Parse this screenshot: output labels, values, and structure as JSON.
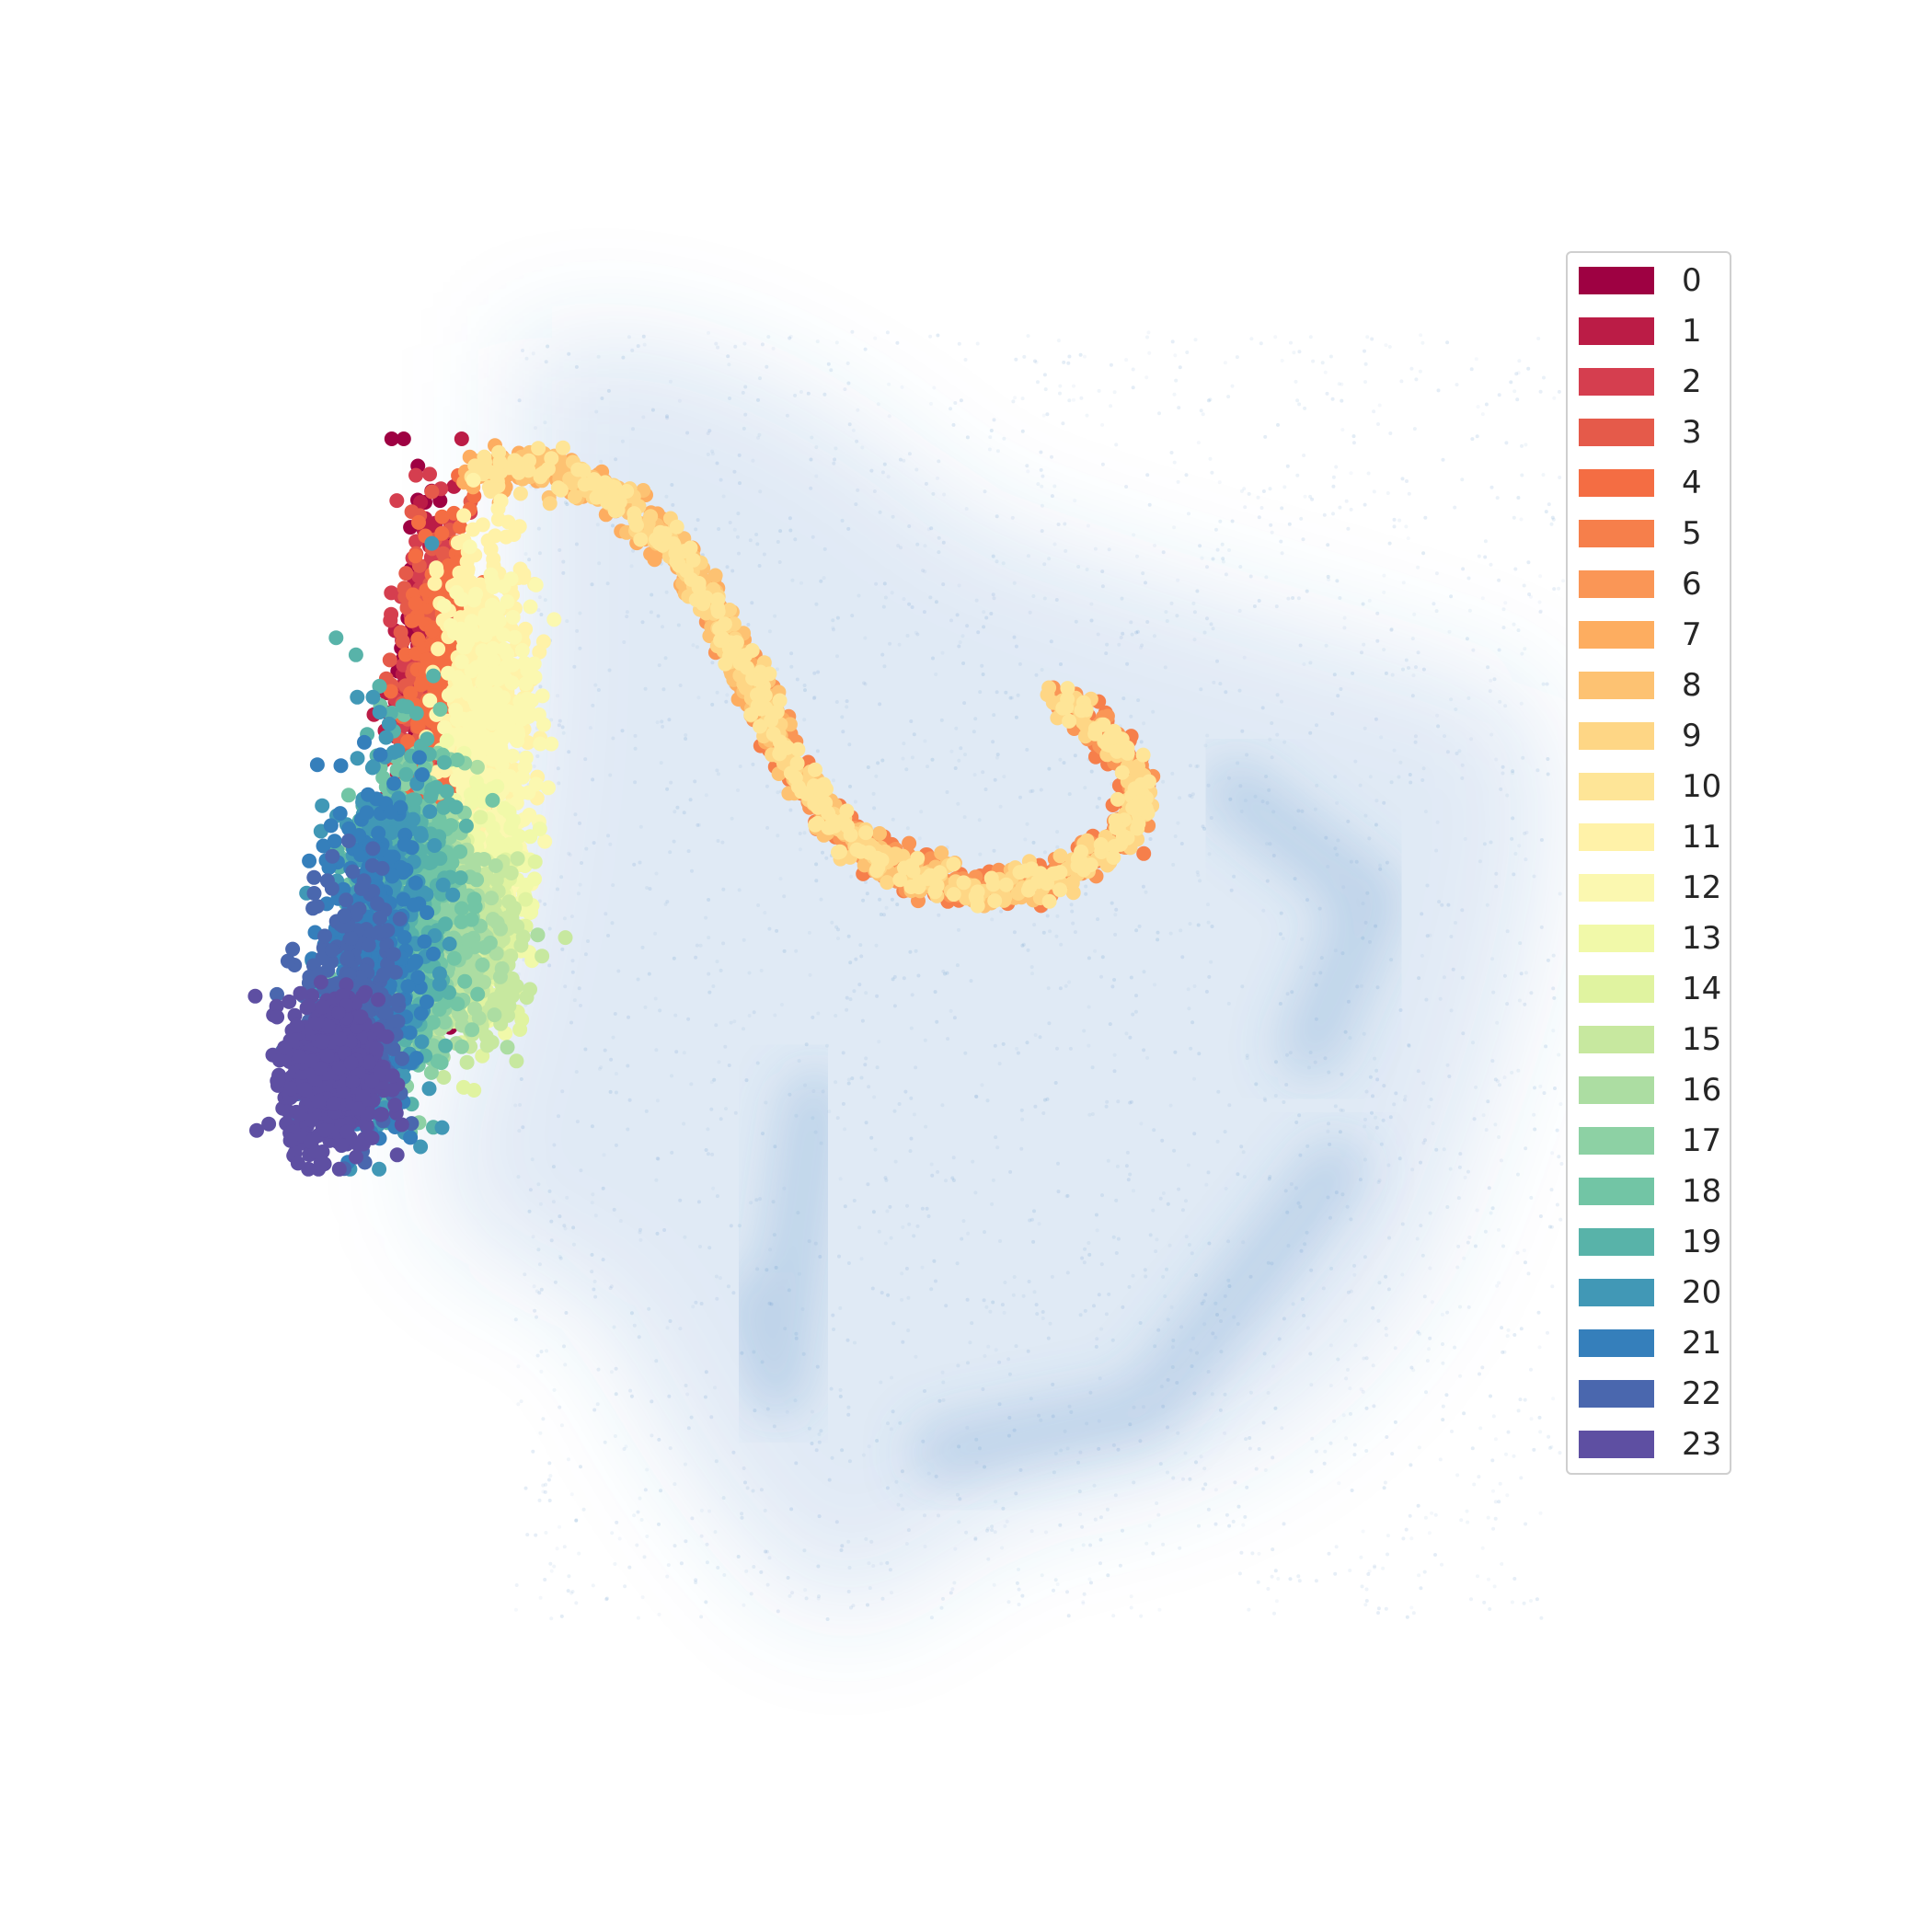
{
  "chart_data": {
    "type": "scatter",
    "title": "",
    "xlabel": "",
    "ylabel": "",
    "axes_visible": false,
    "grid": false,
    "legend_placement": "right",
    "background_density": {
      "color": "#3f7fbf",
      "description_label": "",
      "x_range": [
        0,
        10
      ],
      "y_range": [
        0,
        10
      ],
      "high_density_ridges": [
        {
          "points": [
            [
              4.1,
              4.1
            ],
            [
              3.8,
              2.0
            ],
            [
              3.6,
              2.6
            ]
          ]
        },
        {
          "points": [
            [
              5.1,
              1.5
            ],
            [
              6.7,
              1.8
            ],
            [
              8.2,
              3.6
            ]
          ]
        },
        {
          "points": [
            [
              7.4,
              6.4
            ],
            [
              8.5,
              5.6
            ],
            [
              8.0,
              4.5
            ]
          ]
        }
      ]
    },
    "series": [
      {
        "name": "0",
        "color": "#9e0142",
        "center": [
          1.05,
          6.8
        ],
        "spread": [
          0.12,
          1.4
        ]
      },
      {
        "name": "1",
        "color": "#bb1c46",
        "center": [
          1.05,
          6.7
        ],
        "spread": [
          0.14,
          1.3
        ]
      },
      {
        "name": "2",
        "color": "#d53e4f",
        "center": [
          1.1,
          6.9
        ],
        "spread": [
          0.14,
          1.3
        ]
      },
      {
        "name": "3",
        "color": "#e55a4a",
        "center": [
          1.1,
          6.7
        ],
        "spread": [
          0.15,
          1.4
        ]
      },
      {
        "name": "4",
        "color": "#f46d43",
        "center": [
          1.2,
          7.0
        ],
        "spread": [
          0.15,
          1.3
        ]
      },
      {
        "name": "5",
        "color": "#f67f4b",
        "center": [
          6.3,
          5.6
        ],
        "spread": [
          0.0,
          0.0
        ]
      },
      {
        "name": "6",
        "color": "#fa9656",
        "center": [
          6.7,
          5.3
        ],
        "spread": [
          0.0,
          0.0
        ]
      },
      {
        "name": "7",
        "color": "#fdad60",
        "center": [
          2.7,
          6.5
        ],
        "spread": [
          0.0,
          0.0
        ]
      },
      {
        "name": "8",
        "color": "#fdc272",
        "center": [
          3.2,
          7.1
        ],
        "spread": [
          0.0,
          0.0
        ]
      },
      {
        "name": "9",
        "color": "#fed685",
        "center": [
          4.7,
          6.4
        ],
        "spread": [
          0.0,
          0.0
        ]
      },
      {
        "name": "10",
        "color": "#fee597",
        "center": [
          2.6,
          7.9
        ],
        "spread": [
          0.0,
          0.0
        ]
      },
      {
        "name": "11",
        "color": "#fff2a8",
        "center": [
          1.5,
          7.2
        ],
        "spread": [
          0.18,
          1.1
        ]
      },
      {
        "name": "12",
        "color": "#fbf8b0",
        "center": [
          1.55,
          6.9
        ],
        "spread": [
          0.2,
          1.0
        ]
      },
      {
        "name": "13",
        "color": "#f1f9a9",
        "center": [
          1.45,
          5.6
        ],
        "spread": [
          0.2,
          0.7
        ]
      },
      {
        "name": "14",
        "color": "#e0f3a0",
        "center": [
          1.4,
          5.3
        ],
        "spread": [
          0.2,
          0.6
        ]
      },
      {
        "name": "15",
        "color": "#c7e89f",
        "center": [
          1.35,
          5.2
        ],
        "spread": [
          0.22,
          0.6
        ]
      },
      {
        "name": "16",
        "color": "#acdda2",
        "center": [
          1.2,
          5.3
        ],
        "spread": [
          0.2,
          0.7
        ]
      },
      {
        "name": "17",
        "color": "#8dd1a4",
        "center": [
          1.05,
          5.4
        ],
        "spread": [
          0.2,
          0.9
        ]
      },
      {
        "name": "18",
        "color": "#72c5a5",
        "center": [
          0.9,
          5.6
        ],
        "spread": [
          0.2,
          1.1
        ]
      },
      {
        "name": "19",
        "color": "#58b3a9",
        "center": [
          0.8,
          5.6
        ],
        "spread": [
          0.2,
          1.1
        ]
      },
      {
        "name": "20",
        "color": "#4198b6",
        "center": [
          0.7,
          5.4
        ],
        "spread": [
          0.2,
          1.2
        ]
      },
      {
        "name": "21",
        "color": "#357fbb",
        "center": [
          0.6,
          5.2
        ],
        "spread": [
          0.2,
          1.1
        ]
      },
      {
        "name": "22",
        "color": "#4a67ae",
        "center": [
          0.45,
          4.8
        ],
        "spread": [
          0.2,
          0.9
        ]
      },
      {
        "name": "23",
        "color": "#5e4fa2",
        "center": [
          0.3,
          4.3
        ],
        "spread": [
          0.18,
          0.5
        ]
      }
    ],
    "arc_path": [
      [
        1.4,
        8.7
      ],
      [
        1.9,
        8.8
      ],
      [
        2.5,
        8.6
      ],
      [
        3.0,
        8.2
      ],
      [
        3.3,
        7.7
      ],
      [
        3.6,
        7.2
      ],
      [
        3.9,
        6.6
      ],
      [
        4.3,
        6.1
      ],
      [
        4.8,
        5.8
      ],
      [
        5.4,
        5.65
      ],
      [
        6.0,
        5.75
      ],
      [
        6.5,
        6.05
      ],
      [
        6.7,
        6.4
      ],
      [
        6.4,
        6.8
      ],
      [
        6.0,
        7.1
      ]
    ]
  }
}
